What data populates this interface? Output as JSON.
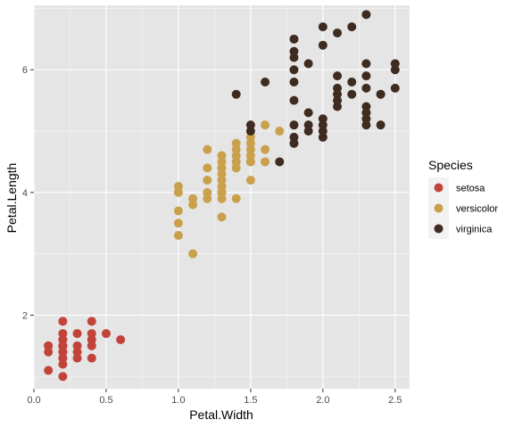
{
  "chart_data": {
    "type": "scatter",
    "xlabel": "Petal.Width",
    "ylabel": "Petal.Length",
    "xlim": [
      0.0,
      2.6
    ],
    "ylim": [
      0.8,
      7.05
    ],
    "x_ticks": [
      0.0,
      0.5,
      1.0,
      1.5,
      2.0,
      2.5
    ],
    "x_tick_labels": [
      "0.0",
      "0.5",
      "1.0",
      "1.5",
      "2.0",
      "2.5"
    ],
    "y_ticks": [
      2,
      4,
      6
    ],
    "y_tick_labels": [
      "2",
      "4",
      "6"
    ],
    "grid": true,
    "panel_background": "#e5e5e5",
    "grid_color": "#ffffff",
    "legend": {
      "title": "Species",
      "position": "right"
    },
    "series": [
      {
        "name": "setosa",
        "color": "#c1433a",
        "x": [
          0.2,
          0.2,
          0.2,
          0.2,
          0.2,
          0.2,
          0.2,
          0.2,
          0.2,
          0.2,
          0.2,
          0.2,
          0.2,
          0.2,
          0.1,
          0.1,
          0.1,
          0.1,
          0.3,
          0.3,
          0.3,
          0.3,
          0.4,
          0.4,
          0.4,
          0.4,
          0.4,
          0.5,
          0.6
        ],
        "y": [
          1.0,
          1.2,
          1.3,
          1.4,
          1.4,
          1.5,
          1.5,
          1.6,
          1.6,
          1.7,
          1.9,
          1.4,
          1.3,
          1.5,
          1.1,
          1.4,
          1.5,
          1.5,
          1.3,
          1.4,
          1.5,
          1.7,
          1.3,
          1.5,
          1.6,
          1.7,
          1.9,
          1.7,
          1.6
        ]
      },
      {
        "name": "versicolor",
        "color": "#c9a04c",
        "x": [
          1.0,
          1.0,
          1.0,
          1.0,
          1.0,
          1.1,
          1.1,
          1.1,
          1.2,
          1.2,
          1.2,
          1.2,
          1.2,
          1.3,
          1.3,
          1.3,
          1.3,
          1.3,
          1.3,
          1.3,
          1.3,
          1.3,
          1.3,
          1.4,
          1.4,
          1.4,
          1.4,
          1.4,
          1.4,
          1.5,
          1.5,
          1.5,
          1.5,
          1.5,
          1.5,
          1.5,
          1.6,
          1.6,
          1.6,
          1.7
        ],
        "y": [
          3.3,
          3.5,
          3.7,
          4.0,
          4.1,
          3.0,
          3.8,
          3.9,
          3.9,
          4.0,
          4.2,
          4.4,
          4.7,
          3.6,
          3.9,
          4.0,
          4.1,
          4.2,
          4.3,
          4.4,
          4.5,
          4.6,
          4.0,
          3.9,
          4.4,
          4.6,
          4.7,
          4.8,
          4.5,
          4.2,
          4.5,
          4.6,
          4.7,
          4.9,
          4.5,
          4.8,
          4.5,
          4.7,
          5.1,
          5.0
        ]
      },
      {
        "name": "virginica",
        "color": "#3f2b1f",
        "x": [
          1.4,
          1.5,
          1.5,
          1.6,
          1.7,
          1.8,
          1.8,
          1.8,
          1.8,
          1.8,
          1.8,
          1.8,
          1.8,
          1.8,
          1.9,
          1.9,
          1.9,
          1.9,
          2.0,
          2.0,
          2.0,
          2.0,
          2.0,
          2.0,
          2.1,
          2.1,
          2.1,
          2.1,
          2.1,
          2.1,
          2.2,
          2.2,
          2.2,
          2.3,
          2.3,
          2.3,
          2.3,
          2.3,
          2.3,
          2.3,
          2.3,
          2.4,
          2.4,
          2.4,
          2.5,
          2.5,
          2.5
        ],
        "y": [
          5.6,
          5.0,
          5.1,
          5.8,
          4.5,
          4.8,
          4.9,
          5.1,
          5.5,
          5.8,
          6.0,
          6.3,
          6.5,
          6.2,
          5.0,
          5.1,
          5.3,
          6.1,
          4.9,
          5.0,
          5.1,
          5.2,
          6.4,
          6.7,
          5.4,
          5.5,
          5.6,
          5.7,
          5.9,
          6.6,
          5.6,
          5.8,
          6.7,
          5.1,
          5.2,
          5.3,
          5.4,
          5.7,
          6.1,
          5.9,
          6.9,
          5.1,
          5.6,
          5.6,
          5.7,
          6.0,
          6.1
        ]
      }
    ]
  }
}
